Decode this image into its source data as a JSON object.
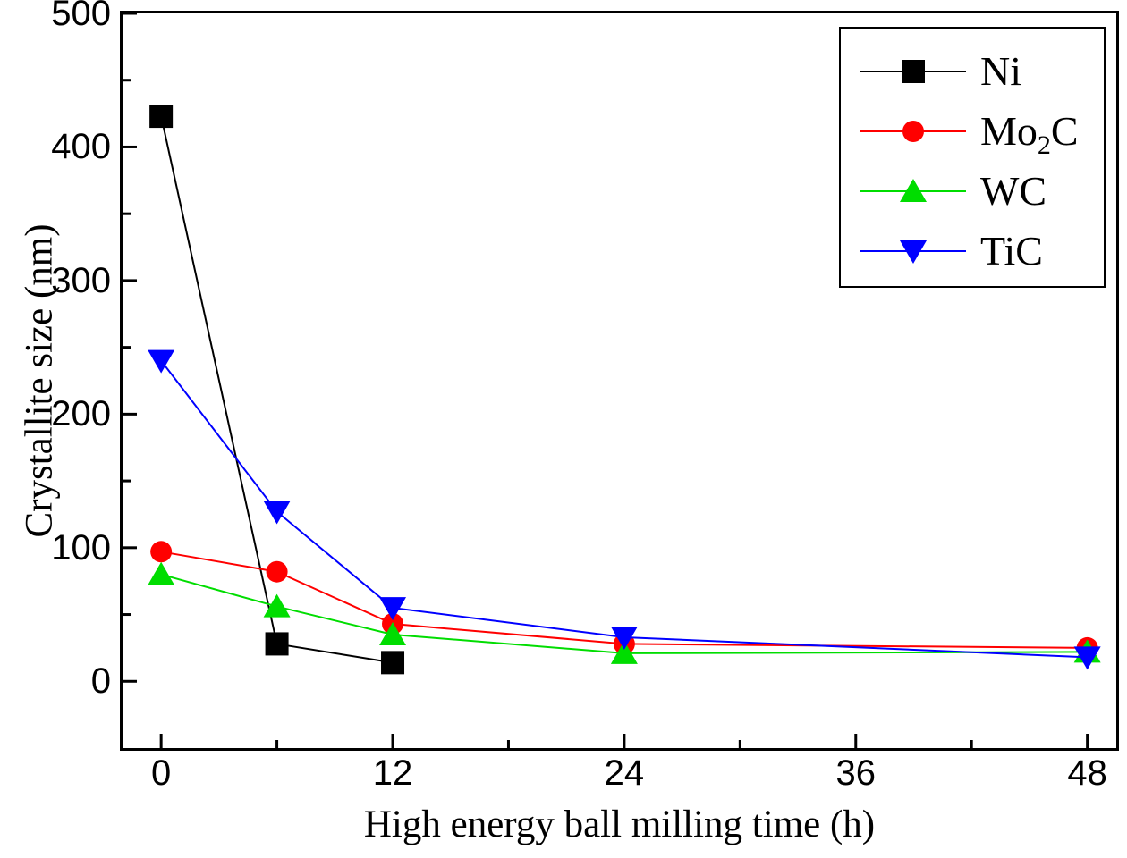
{
  "figure": {
    "background": "#ffffff",
    "text_color": "#000000"
  },
  "chart_data": {
    "type": "line",
    "title": "",
    "xlabel": "High energy ball milling time (h)",
    "ylabel": "Crystallite size (nm)",
    "xlim": [
      -2,
      49.5
    ],
    "ylim": [
      -50,
      500
    ],
    "x_major_ticks": [
      0,
      12,
      24,
      36,
      48
    ],
    "x_minor_ticks": [
      6,
      18,
      30,
      42
    ],
    "y_major_ticks": [
      0,
      100,
      200,
      300,
      400,
      500
    ],
    "y_minor_ticks": [
      50,
      150,
      250,
      350,
      450
    ],
    "grid": "off",
    "legend_position": "top-right",
    "series": [
      {
        "name": "Ni",
        "color": "#000000",
        "marker": "square",
        "x": [
          0,
          6,
          12
        ],
        "y": [
          423,
          28,
          14
        ],
        "legend_label": [
          [
            "Ni",
            false
          ]
        ]
      },
      {
        "name": "Mo2C",
        "color": "#ff0000",
        "marker": "circle",
        "x": [
          0,
          6,
          12,
          24,
          48
        ],
        "y": [
          97,
          82,
          43,
          28,
          25
        ],
        "legend_label": [
          [
            "Mo",
            false
          ],
          [
            "2",
            true
          ],
          [
            "C",
            false
          ]
        ]
      },
      {
        "name": "WC",
        "color": "#00dd00",
        "marker": "triangle-up",
        "x": [
          0,
          6,
          12,
          24,
          48
        ],
        "y": [
          80,
          56,
          35,
          21,
          22
        ],
        "legend_label": [
          [
            "WC",
            false
          ]
        ]
      },
      {
        "name": "TiC",
        "color": "#0000ff",
        "marker": "triangle-down",
        "x": [
          0,
          6,
          12,
          24,
          48
        ],
        "y": [
          240,
          127,
          55,
          33,
          18
        ],
        "legend_label": [
          [
            "TiC",
            false
          ]
        ]
      }
    ]
  }
}
